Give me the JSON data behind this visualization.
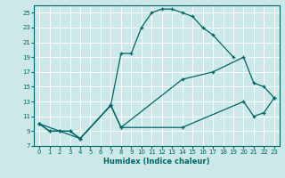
{
  "xlabel": "Humidex (Indice chaleur)",
  "bg_color": "#cce8e8",
  "grid_color": "#ffffff",
  "line_color": "#006666",
  "xlim": [
    -0.5,
    23.5
  ],
  "ylim": [
    7,
    26
  ],
  "xticks": [
    0,
    1,
    2,
    3,
    4,
    5,
    6,
    7,
    8,
    9,
    10,
    11,
    12,
    13,
    14,
    15,
    16,
    17,
    18,
    19,
    20,
    21,
    22,
    23
  ],
  "yticks": [
    7,
    9,
    11,
    13,
    15,
    17,
    19,
    21,
    23,
    25
  ],
  "series1": {
    "x": [
      0,
      1,
      2,
      3,
      4,
      7,
      8,
      9,
      10,
      11,
      12,
      13,
      14,
      15,
      16,
      17,
      19
    ],
    "y": [
      10,
      9,
      9,
      9,
      8,
      12.5,
      19.5,
      19.5,
      23,
      25,
      25.5,
      25.5,
      25,
      24.5,
      23,
      22,
      19
    ]
  },
  "series2": {
    "x": [
      0,
      1,
      2,
      3,
      4,
      7,
      8,
      14,
      17,
      20,
      21,
      22,
      23
    ],
    "y": [
      10,
      9,
      9,
      9,
      8,
      12.5,
      9.5,
      16,
      17,
      19,
      15.5,
      15,
      13.5
    ]
  },
  "series3": {
    "x": [
      0,
      4,
      7,
      8,
      14,
      20,
      21,
      22,
      23
    ],
    "y": [
      10,
      8,
      12.5,
      9.5,
      9.5,
      13,
      11,
      11.5,
      13.5
    ]
  }
}
